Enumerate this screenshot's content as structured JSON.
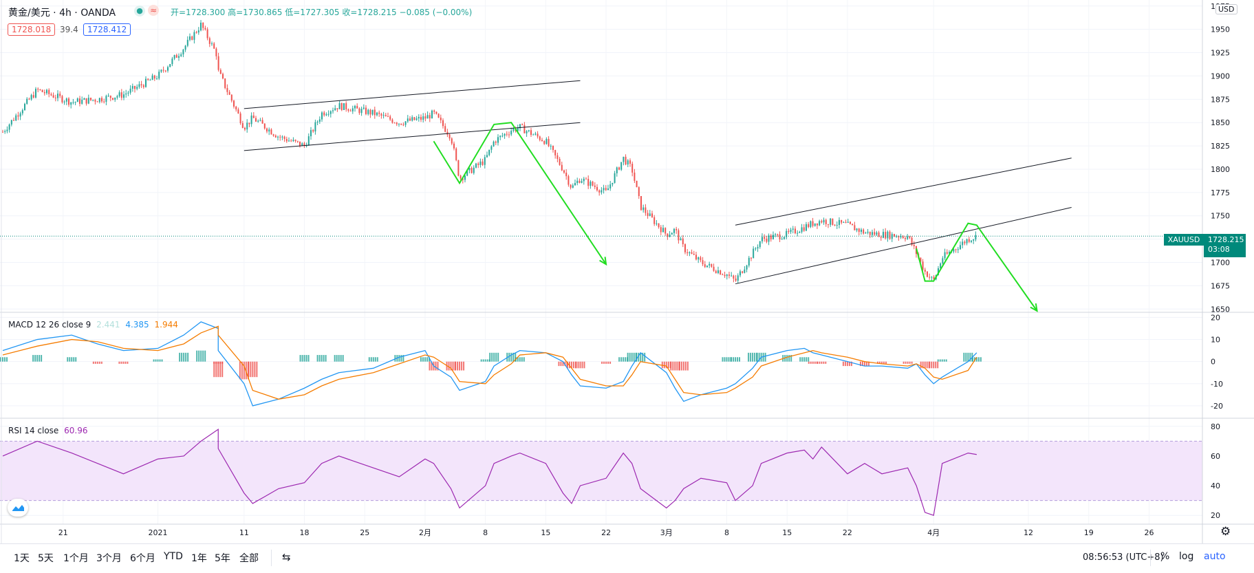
{
  "header": {
    "symbol": "黄金/美元 · 4h · OANDA",
    "ohlc": "开=1728.300 高=1730.865 低=1727.305 收=1728.215 −0.085 (−0.00%)",
    "bid": "1728.018",
    "spread": "39.4",
    "ask": "1728.412",
    "currency": "USD",
    "colors": {
      "up": "#26a69a",
      "down": "#ef5350",
      "ohlc_text": "#26a69a",
      "bid": "#ef5350",
      "ask": "#2962ff"
    }
  },
  "price_label": {
    "ticker": "XAUUSD",
    "price": "1728.215",
    "countdown": "03:08",
    "color": "#00897b"
  },
  "indicators": {
    "macd": {
      "label": "MACD 12 26 close 9",
      "hist": "2.441",
      "macd": "4.385",
      "signal": "1.944",
      "colors": {
        "hist": "#b2dfdb",
        "macd": "#2196f3",
        "signal": "#f57c00"
      }
    },
    "rsi": {
      "label": "RSI 14 close",
      "value": "60.96",
      "color": "#9c27b0"
    }
  },
  "chart_data": [
    {
      "type": "line",
      "title": "黄金/美元 · 4h · OANDA",
      "x_tick_labels": [
        "21",
        "2021",
        "11",
        "18",
        "25",
        "2月",
        "8",
        "15",
        "22",
        "3月",
        "8",
        "15",
        "22",
        "4月",
        "12",
        "19",
        "26"
      ],
      "y_ticks": [
        1650,
        1675,
        1700,
        1725,
        1750,
        1775,
        1800,
        1825,
        1850,
        1875,
        1900,
        1925,
        1950,
        1975
      ],
      "ylim": [
        1648,
        1980
      ],
      "series": [
        {
          "x": [
            "12-14",
            "12-18",
            "12-22",
            "12-25",
            "12-28",
            "01-01",
            "01-04",
            "01-06",
            "01-08",
            "01-08",
            "01-11",
            "01-12",
            "01-15",
            "01-18",
            "01-20",
            "01-22",
            "01-26",
            "01-29",
            "02-01",
            "02-02",
            "02-04",
            "02-05",
            "02-08",
            "02-09",
            "02-11",
            "02-12",
            "02-15",
            "02-17",
            "02-18",
            "02-19",
            "02-22",
            "02-24",
            "02-25",
            "02-26",
            "03-01",
            "03-02",
            "03-03",
            "03-05",
            "03-08",
            "03-09",
            "03-11",
            "03-12",
            "03-15",
            "03-17",
            "03-18",
            "03-19",
            "03-22",
            "03-24",
            "03-26",
            "03-29",
            "03-30",
            "03-31",
            "04-01",
            "04-02",
            "04-05",
            "04-06"
          ],
          "values": [
            1840,
            1885,
            1872,
            1875,
            1880,
            1900,
            1930,
            1955,
            1920,
            1905,
            1845,
            1855,
            1835,
            1825,
            1860,
            1868,
            1860,
            1850,
            1855,
            1860,
            1835,
            1790,
            1810,
            1830,
            1842,
            1845,
            1830,
            1800,
            1780,
            1790,
            1775,
            1812,
            1800,
            1760,
            1730,
            1735,
            1715,
            1700,
            1687,
            1680,
            1710,
            1725,
            1730,
            1738,
            1742,
            1745,
            1740,
            1732,
            1730,
            1728,
            1710,
            1690,
            1680,
            1705,
            1725,
            1728
          ]
        }
      ],
      "annotations": [
        {
          "type": "trend-line",
          "from": [
            "01-11",
            1865
          ],
          "to": [
            "02-19",
            1895
          ]
        },
        {
          "type": "trend-line",
          "from": [
            "01-11",
            1820
          ],
          "to": [
            "02-19",
            1850
          ]
        },
        {
          "type": "trend-line",
          "from": [
            "03-09",
            1740
          ],
          "to": [
            "04-17",
            1812
          ]
        },
        {
          "type": "trend-line",
          "from": [
            "03-09",
            1677
          ],
          "to": [
            "04-17",
            1759
          ]
        },
        {
          "type": "arrow",
          "color": "#22dd22",
          "points": [
            [
              "02-02",
              1830
            ],
            [
              "02-05",
              1785
            ],
            [
              "02-09",
              1848
            ],
            [
              "02-11",
              1850
            ],
            [
              "02-22",
              1698
            ]
          ]
        },
        {
          "type": "arrow",
          "color": "#22dd22",
          "points": [
            [
              "03-30",
              1715
            ],
            [
              "03-31",
              1680
            ],
            [
              "04-01",
              1680
            ],
            [
              "04-05",
              1742
            ],
            [
              "04-06",
              1740
            ],
            [
              "04-13",
              1648
            ]
          ]
        }
      ]
    },
    {
      "type": "line",
      "title": "MACD 12 26 close 9",
      "y_ticks": [
        20,
        10,
        0,
        -10,
        -20
      ],
      "ylim": [
        -25,
        22
      ],
      "series": [
        {
          "name": "MACD",
          "values": [
            5,
            10,
            12,
            8,
            5,
            6,
            12,
            18,
            15,
            5,
            -10,
            -20,
            -17,
            -12,
            -8,
            -5,
            -3,
            2,
            5,
            -2,
            -7,
            -13,
            -9,
            -2,
            3,
            5,
            4,
            0,
            -6,
            -11,
            -12,
            -9,
            -2,
            4,
            -5,
            -12,
            -18,
            -15,
            -12,
            -10,
            -3,
            2,
            5,
            6,
            4,
            3,
            0,
            -2,
            -2,
            -3,
            -1,
            -6,
            -10,
            -7,
            0,
            4
          ]
        },
        {
          "name": "Signal",
          "values": [
            3,
            7,
            10,
            9,
            6,
            5,
            8,
            13,
            16,
            12,
            -2,
            -13,
            -17,
            -15,
            -11,
            -8,
            -5,
            -1,
            3,
            2,
            -3,
            -9,
            -10,
            -6,
            -1,
            3,
            4,
            2,
            -3,
            -8,
            -11,
            -11,
            -6,
            0,
            -2,
            -8,
            -14,
            -15,
            -14,
            -12,
            -7,
            -2,
            2,
            4,
            5,
            4,
            2,
            0,
            -1,
            -2,
            -1,
            -3,
            -7,
            -8,
            -4,
            2
          ]
        }
      ]
    },
    {
      "type": "line",
      "title": "RSI 14 close",
      "y_ticks": [
        20,
        40,
        60,
        80
      ],
      "ylim": [
        15,
        85
      ],
      "series": [
        {
          "name": "RSI",
          "values": [
            60,
            70,
            62,
            55,
            48,
            58,
            60,
            70,
            78,
            65,
            35,
            28,
            38,
            42,
            55,
            60,
            52,
            46,
            58,
            55,
            38,
            25,
            40,
            55,
            60,
            62,
            55,
            35,
            28,
            40,
            45,
            62,
            55,
            38,
            25,
            30,
            38,
            45,
            42,
            30,
            40,
            55,
            62,
            64,
            58,
            66,
            48,
            55,
            48,
            52,
            40,
            22,
            20,
            55,
            62,
            61
          ]
        }
      ]
    }
  ],
  "time_axis_labels": [
    "21",
    "2021",
    "11",
    "18",
    "25",
    "2月",
    "8",
    "15",
    "22",
    "3月",
    "8",
    "15",
    "22",
    "4月",
    "12",
    "19",
    "26"
  ],
  "bottom_bar": {
    "ranges": [
      "1天",
      "5天",
      "1个月",
      "3个月",
      "6个月",
      "YTD",
      "1年",
      "5年",
      "全部"
    ],
    "compare_icon": "calendar-range-icon",
    "time": "08:56:53 (UTC+8)",
    "percent": "%",
    "log": "log",
    "auto": "auto",
    "auto_color": "#2962ff"
  }
}
